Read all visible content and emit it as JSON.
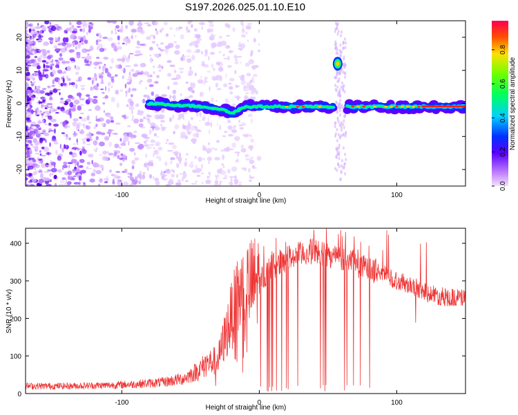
{
  "title": "S197.2026.025.01.10.E10",
  "chart_data": [
    {
      "type": "heatmap",
      "name": "spectrogram",
      "xlabel": "Height of straight line (km)",
      "ylabel": "Frequency (Hz)",
      "xlim": [
        -170,
        150
      ],
      "ylim": [
        -25,
        25
      ],
      "xticks": [
        -100,
        0,
        100
      ],
      "yticks": [
        -20,
        -10,
        0,
        10,
        20
      ],
      "colorbar": {
        "label": "Normalized spectral amplitude",
        "ticks": [
          0.0,
          0.2,
          0.4,
          0.6,
          0.8
        ],
        "range": [
          0,
          0.97
        ]
      },
      "features": [
        {
          "label": "signal trace",
          "x": [
            -80,
            -40,
            -25,
            -20,
            -10,
            0,
            20,
            55,
            65,
            80,
            100,
            115,
            150
          ],
          "y": [
            0,
            -1,
            -2,
            -3,
            -1,
            -1,
            -1,
            -1,
            -1,
            -1,
            -1,
            -1,
            -1
          ]
        },
        {
          "label": "spot",
          "x": 57,
          "y": 12
        }
      ]
    },
    {
      "type": "line",
      "name": "snr",
      "xlabel": "Height of straight line (km)",
      "ylabel": "SNR (10 * v/v)",
      "xlim": [
        -170,
        150
      ],
      "ylim": [
        0,
        440
      ],
      "xticks": [
        -100,
        0,
        100
      ],
      "yticks": [
        0,
        100,
        200,
        300,
        400
      ],
      "color": "#ee3333",
      "series": [
        {
          "name": "SNR envelope",
          "x": [
            -170,
            -140,
            -110,
            -90,
            -70,
            -55,
            -45,
            -38,
            -30,
            -25,
            -20,
            -15,
            -10,
            -5,
            0,
            5,
            10,
            20,
            30,
            40,
            50,
            60,
            70,
            80,
            90,
            100,
            110,
            120,
            130,
            140,
            150
          ],
          "y": [
            20,
            20,
            22,
            25,
            30,
            40,
            60,
            80,
            90,
            150,
            210,
            260,
            280,
            290,
            300,
            320,
            340,
            360,
            370,
            380,
            370,
            360,
            345,
            330,
            320,
            300,
            290,
            270,
            260,
            255,
            255
          ]
        }
      ]
    }
  ]
}
